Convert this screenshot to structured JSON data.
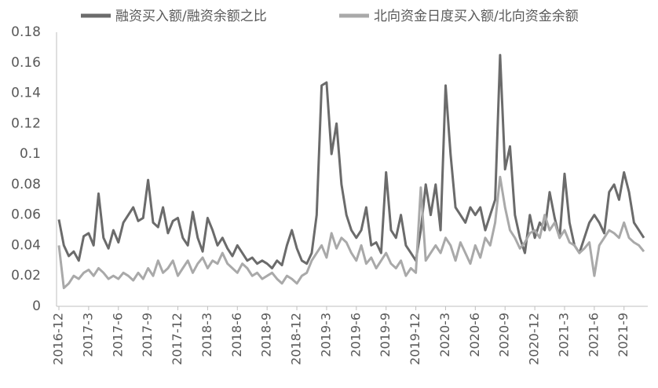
{
  "chart_data": {
    "type": "line",
    "categories": [
      "2016-12",
      null,
      null,
      null,
      null,
      null,
      "2017-3",
      null,
      null,
      null,
      null,
      null,
      "2017-6",
      null,
      null,
      null,
      null,
      null,
      "2017-9",
      null,
      null,
      null,
      null,
      null,
      "2017-12",
      null,
      null,
      null,
      null,
      null,
      "2018-3",
      null,
      null,
      null,
      null,
      null,
      "2018-6",
      null,
      null,
      null,
      null,
      null,
      "2018-9",
      null,
      null,
      null,
      null,
      null,
      "2018-12",
      null,
      null,
      null,
      null,
      null,
      "2019-3",
      null,
      null,
      null,
      null,
      null,
      "2019-6",
      null,
      null,
      null,
      null,
      null,
      "2019-9",
      null,
      null,
      null,
      null,
      null,
      "2019-12",
      null,
      null,
      null,
      null,
      null,
      "2020-3",
      null,
      null,
      null,
      null,
      null,
      "2020-6",
      null,
      null,
      null,
      null,
      null,
      "2020-9",
      null,
      null,
      null,
      null,
      null,
      "2020-12",
      null,
      null,
      null,
      null,
      null,
      "2021-3",
      null,
      null,
      null,
      null,
      null,
      "2021-6",
      null,
      null,
      null,
      null,
      null,
      "2021-9",
      null,
      null,
      null,
      null
    ],
    "series": [
      {
        "name": "融资买入额/融资余额之比",
        "color": "#6b6b6b",
        "values": [
          0.057,
          0.04,
          0.033,
          0.036,
          0.03,
          0.046,
          0.048,
          0.04,
          0.074,
          0.045,
          0.038,
          0.05,
          0.042,
          0.055,
          0.06,
          0.065,
          0.056,
          0.058,
          0.083,
          0.055,
          0.052,
          0.065,
          0.048,
          0.056,
          0.058,
          0.045,
          0.04,
          0.062,
          0.045,
          0.036,
          0.058,
          0.05,
          0.04,
          0.045,
          0.038,
          0.033,
          0.04,
          0.035,
          0.03,
          0.032,
          0.028,
          0.03,
          0.028,
          0.025,
          0.03,
          0.027,
          0.04,
          0.05,
          0.038,
          0.03,
          0.028,
          0.035,
          0.06,
          0.145,
          0.147,
          0.1,
          0.12,
          0.08,
          0.06,
          0.05,
          0.045,
          0.05,
          0.065,
          0.04,
          0.042,
          0.035,
          0.088,
          0.05,
          0.045,
          0.06,
          0.04,
          0.035,
          0.03,
          0.05,
          0.08,
          0.06,
          0.08,
          0.05,
          0.145,
          0.1,
          0.065,
          0.06,
          0.055,
          0.065,
          0.06,
          0.065,
          0.05,
          0.06,
          0.07,
          0.165,
          0.09,
          0.105,
          0.06,
          0.045,
          0.035,
          0.06,
          0.045,
          0.055,
          0.05,
          0.075,
          0.058,
          0.045,
          0.087,
          0.055,
          0.04,
          0.035,
          0.045,
          0.055,
          0.06,
          0.055,
          0.048,
          0.075,
          0.08,
          0.07,
          0.088,
          0.075,
          0.055,
          0.05,
          0.045
        ]
      },
      {
        "name": "北向资金日度买入额/北向资金余额",
        "color": "#a9a9a9",
        "values": [
          0.04,
          0.012,
          0.015,
          0.02,
          0.018,
          0.022,
          0.024,
          0.02,
          0.025,
          0.022,
          0.018,
          0.02,
          0.018,
          0.022,
          0.02,
          0.017,
          0.022,
          0.018,
          0.025,
          0.02,
          0.03,
          0.022,
          0.025,
          0.03,
          0.02,
          0.025,
          0.03,
          0.022,
          0.028,
          0.032,
          0.025,
          0.03,
          0.028,
          0.035,
          0.028,
          0.025,
          0.022,
          0.028,
          0.025,
          0.02,
          0.022,
          0.018,
          0.02,
          0.022,
          0.018,
          0.015,
          0.02,
          0.018,
          0.015,
          0.02,
          0.022,
          0.03,
          0.035,
          0.04,
          0.032,
          0.048,
          0.038,
          0.045,
          0.042,
          0.035,
          0.03,
          0.04,
          0.028,
          0.032,
          0.025,
          0.03,
          0.035,
          0.028,
          0.025,
          0.03,
          0.02,
          0.025,
          0.022,
          0.078,
          0.03,
          0.035,
          0.04,
          0.035,
          0.045,
          0.04,
          0.03,
          0.042,
          0.035,
          0.028,
          0.04,
          0.032,
          0.045,
          0.04,
          0.055,
          0.085,
          0.065,
          0.05,
          0.045,
          0.038,
          0.042,
          0.048,
          0.05,
          0.045,
          0.06,
          0.05,
          0.055,
          0.045,
          0.05,
          0.042,
          0.04,
          0.035,
          0.038,
          0.042,
          0.02,
          0.04,
          0.045,
          0.05,
          0.048,
          0.045,
          0.055,
          0.045,
          0.042,
          0.04,
          0.036
        ]
      }
    ],
    "ylim": [
      0,
      0.18
    ],
    "yticks": [
      0,
      0.02,
      0.04,
      0.06,
      0.08,
      0.1,
      0.12,
      0.14,
      0.16,
      0.18
    ],
    "grid": false
  }
}
